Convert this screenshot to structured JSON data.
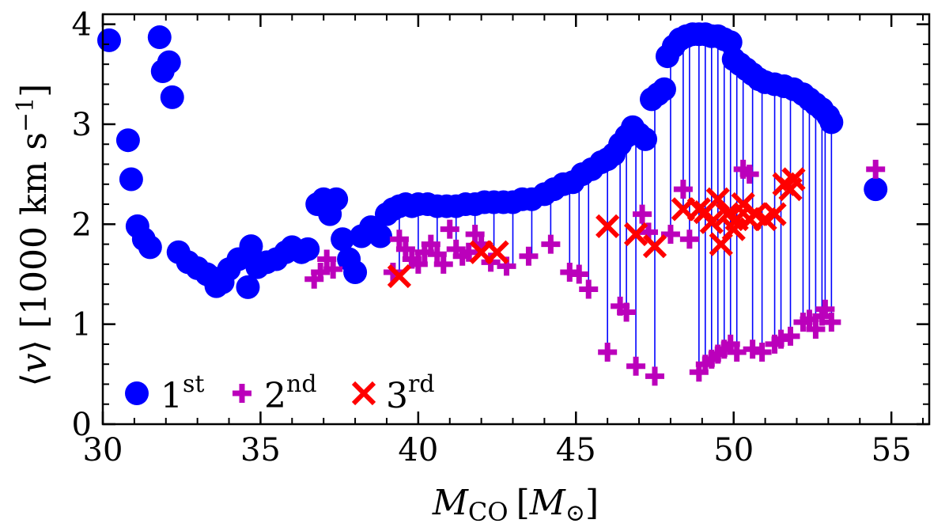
{
  "chart_data": {
    "type": "scatter",
    "title": "",
    "xlabel": "M_CO [M_⊙]",
    "ylabel": "⟨v⟩ [1000 km s^−1]",
    "xlabel_parts": {
      "main": "M",
      "sub": "CO",
      "bracket_open": "[",
      "unit_main": "M",
      "unit_sub": "⊙",
      "bracket_close": "]"
    },
    "ylabel_parts": {
      "angle_open": "⟨",
      "var": "v",
      "angle_close": "⟩",
      "unit": "[1000 km s",
      "exp": "−1",
      "close": "]"
    },
    "xlim": [
      30,
      56.2
    ],
    "ylim": [
      0,
      4.1
    ],
    "xticks": [
      30,
      35,
      40,
      45,
      50,
      55
    ],
    "xtick_labels": [
      "30",
      "35",
      "40",
      "45",
      "50",
      "55"
    ],
    "yticks": [
      0,
      1,
      2,
      3,
      4
    ],
    "ytick_labels": [
      "0",
      "1",
      "2",
      "3",
      "4"
    ],
    "legend_position": "bottom-left",
    "colors": {
      "first": "#0000ff",
      "second": "#bb00bb",
      "third": "#ff0000",
      "stem": "#0000ff",
      "axis": "#000000"
    },
    "series": [
      {
        "name": "1st",
        "label_base": "1",
        "label_sup": "st",
        "marker": "circle",
        "points": [
          [
            30.2,
            3.84
          ],
          [
            30.8,
            2.84
          ],
          [
            30.9,
            2.45
          ],
          [
            31.1,
            1.98
          ],
          [
            31.3,
            1.85
          ],
          [
            31.5,
            1.77
          ],
          [
            31.8,
            3.87
          ],
          [
            31.9,
            3.53
          ],
          [
            32.1,
            3.62
          ],
          [
            32.2,
            3.27
          ],
          [
            32.4,
            1.72
          ],
          [
            32.7,
            1.62
          ],
          [
            33.0,
            1.56
          ],
          [
            33.3,
            1.5
          ],
          [
            33.5,
            1.46
          ],
          [
            33.6,
            1.38
          ],
          [
            33.8,
            1.42
          ],
          [
            34.0,
            1.55
          ],
          [
            34.3,
            1.65
          ],
          [
            34.6,
            1.37
          ],
          [
            34.7,
            1.78
          ],
          [
            34.9,
            1.57
          ],
          [
            35.2,
            1.62
          ],
          [
            35.5,
            1.65
          ],
          [
            35.8,
            1.72
          ],
          [
            36.0,
            1.77
          ],
          [
            36.3,
            1.72
          ],
          [
            36.5,
            1.75
          ],
          [
            36.8,
            2.2
          ],
          [
            37.0,
            2.25
          ],
          [
            37.2,
            2.1
          ],
          [
            37.4,
            2.25
          ],
          [
            37.6,
            1.85
          ],
          [
            37.8,
            1.65
          ],
          [
            38.0,
            1.52
          ],
          [
            38.2,
            1.88
          ],
          [
            38.5,
            1.97
          ],
          [
            38.8,
            1.88
          ],
          [
            39.0,
            2.1
          ],
          [
            39.2,
            2.15
          ],
          [
            39.4,
            2.18
          ],
          [
            39.6,
            2.2
          ],
          [
            39.8,
            2.18
          ],
          [
            40.0,
            2.2
          ],
          [
            40.3,
            2.2
          ],
          [
            40.6,
            2.18
          ],
          [
            40.9,
            2.18
          ],
          [
            41.2,
            2.18
          ],
          [
            41.5,
            2.2
          ],
          [
            41.8,
            2.2
          ],
          [
            42.1,
            2.22
          ],
          [
            42.4,
            2.22
          ],
          [
            42.7,
            2.22
          ],
          [
            43.0,
            2.22
          ],
          [
            43.3,
            2.25
          ],
          [
            43.6,
            2.25
          ],
          [
            44.0,
            2.3
          ],
          [
            44.3,
            2.35
          ],
          [
            44.6,
            2.4
          ],
          [
            44.9,
            2.42
          ],
          [
            45.2,
            2.5
          ],
          [
            45.5,
            2.55
          ],
          [
            45.8,
            2.62
          ],
          [
            46.0,
            2.65
          ],
          [
            46.2,
            2.7
          ],
          [
            46.4,
            2.8
          ],
          [
            46.6,
            2.88
          ],
          [
            46.8,
            2.97
          ],
          [
            47.0,
            2.9
          ],
          [
            47.2,
            2.85
          ],
          [
            47.4,
            3.25
          ],
          [
            47.6,
            3.3
          ],
          [
            47.8,
            3.35
          ],
          [
            47.9,
            3.68
          ],
          [
            48.1,
            3.78
          ],
          [
            48.3,
            3.85
          ],
          [
            48.5,
            3.88
          ],
          [
            48.7,
            3.9
          ],
          [
            48.9,
            3.9
          ],
          [
            49.1,
            3.9
          ],
          [
            49.3,
            3.88
          ],
          [
            49.5,
            3.88
          ],
          [
            49.7,
            3.85
          ],
          [
            49.9,
            3.82
          ],
          [
            50.0,
            3.65
          ],
          [
            50.2,
            3.6
          ],
          [
            50.4,
            3.55
          ],
          [
            50.6,
            3.5
          ],
          [
            50.8,
            3.45
          ],
          [
            51.0,
            3.42
          ],
          [
            51.3,
            3.4
          ],
          [
            51.6,
            3.38
          ],
          [
            51.9,
            3.35
          ],
          [
            52.2,
            3.3
          ],
          [
            52.4,
            3.25
          ],
          [
            52.6,
            3.2
          ],
          [
            52.8,
            3.15
          ],
          [
            53.0,
            3.08
          ],
          [
            53.1,
            3.02
          ],
          [
            54.5,
            2.35
          ]
        ]
      },
      {
        "name": "2nd",
        "label_base": "2",
        "label_sup": "nd",
        "marker": "plus",
        "points": [
          [
            36.7,
            1.45
          ],
          [
            36.9,
            1.52
          ],
          [
            37.1,
            1.65
          ],
          [
            37.3,
            1.55
          ],
          [
            39.2,
            1.52
          ],
          [
            39.4,
            1.85
          ],
          [
            39.6,
            1.75
          ],
          [
            39.8,
            1.65
          ],
          [
            40.0,
            1.6
          ],
          [
            40.2,
            1.72
          ],
          [
            40.4,
            1.8
          ],
          [
            40.6,
            1.7
          ],
          [
            40.8,
            1.6
          ],
          [
            41.0,
            1.95
          ],
          [
            41.2,
            1.75
          ],
          [
            41.4,
            1.68
          ],
          [
            41.6,
            1.72
          ],
          [
            41.8,
            1.9
          ],
          [
            42.0,
            1.8
          ],
          [
            42.3,
            1.62
          ],
          [
            42.8,
            1.58
          ],
          [
            43.5,
            1.68
          ],
          [
            44.2,
            1.8
          ],
          [
            44.8,
            1.52
          ],
          [
            45.1,
            1.5
          ],
          [
            45.4,
            1.35
          ],
          [
            46.0,
            0.72
          ],
          [
            46.4,
            1.18
          ],
          [
            46.6,
            1.12
          ],
          [
            46.9,
            0.58
          ],
          [
            47.1,
            2.1
          ],
          [
            47.3,
            1.92
          ],
          [
            47.5,
            0.48
          ],
          [
            48.0,
            1.9
          ],
          [
            48.4,
            2.35
          ],
          [
            48.6,
            1.85
          ],
          [
            48.9,
            0.52
          ],
          [
            49.1,
            0.6
          ],
          [
            49.3,
            0.65
          ],
          [
            49.5,
            0.7
          ],
          [
            49.7,
            0.75
          ],
          [
            49.9,
            0.8
          ],
          [
            50.1,
            0.72
          ],
          [
            50.3,
            2.55
          ],
          [
            50.5,
            2.5
          ],
          [
            50.6,
            0.75
          ],
          [
            50.9,
            0.72
          ],
          [
            51.3,
            0.8
          ],
          [
            51.5,
            0.85
          ],
          [
            51.8,
            0.88
          ],
          [
            52.2,
            1.02
          ],
          [
            52.4,
            1.05
          ],
          [
            52.6,
            0.95
          ],
          [
            52.8,
            1.08
          ],
          [
            52.9,
            1.15
          ],
          [
            53.1,
            1.02
          ],
          [
            54.5,
            2.55
          ]
        ]
      },
      {
        "name": "3rd",
        "label_base": "3",
        "label_sup": "rd",
        "marker": "x",
        "points": [
          [
            39.4,
            1.48
          ],
          [
            42.0,
            1.72
          ],
          [
            42.5,
            1.72
          ],
          [
            46.0,
            1.98
          ],
          [
            46.9,
            1.9
          ],
          [
            47.5,
            1.78
          ],
          [
            48.4,
            2.15
          ],
          [
            48.9,
            2.15
          ],
          [
            49.1,
            2.12
          ],
          [
            49.3,
            2.02
          ],
          [
            49.5,
            2.25
          ],
          [
            49.6,
            1.8
          ],
          [
            49.8,
            2.1
          ],
          [
            50.0,
            1.95
          ],
          [
            50.1,
            2.05
          ],
          [
            50.3,
            2.2
          ],
          [
            50.5,
            2.05
          ],
          [
            50.7,
            2.1
          ],
          [
            51.0,
            2.05
          ],
          [
            51.3,
            2.1
          ],
          [
            51.6,
            2.4
          ],
          [
            51.8,
            2.35
          ],
          [
            51.9,
            2.45
          ]
        ]
      }
    ],
    "stems": [
      [
        39.4,
        2.18,
        1.48
      ],
      [
        40.0,
        2.2,
        1.6
      ],
      [
        40.6,
        2.18,
        1.7
      ],
      [
        41.2,
        2.18,
        1.75
      ],
      [
        41.8,
        2.2,
        1.9
      ],
      [
        42.4,
        2.22,
        1.7
      ],
      [
        43.0,
        2.22,
        1.6
      ],
      [
        43.6,
        2.25,
        1.68
      ],
      [
        44.2,
        2.3,
        1.8
      ],
      [
        44.8,
        2.4,
        1.52
      ],
      [
        45.1,
        2.45,
        1.5
      ],
      [
        45.4,
        2.55,
        1.35
      ],
      [
        46.0,
        2.65,
        0.72
      ],
      [
        46.4,
        2.8,
        1.18
      ],
      [
        46.6,
        2.88,
        1.12
      ],
      [
        46.9,
        2.97,
        0.58
      ],
      [
        47.1,
        2.9,
        1.92
      ],
      [
        47.5,
        3.28,
        0.48
      ],
      [
        48.0,
        3.72,
        1.9
      ],
      [
        48.4,
        3.85,
        2.15
      ],
      [
        48.6,
        3.88,
        1.85
      ],
      [
        48.9,
        3.9,
        0.52
      ],
      [
        49.1,
        3.9,
        0.6
      ],
      [
        49.3,
        3.88,
        0.65
      ],
      [
        49.5,
        3.88,
        0.7
      ],
      [
        49.7,
        3.85,
        0.75
      ],
      [
        49.9,
        3.82,
        0.8
      ],
      [
        50.1,
        3.62,
        0.72
      ],
      [
        50.3,
        3.58,
        2.2
      ],
      [
        50.6,
        3.5,
        0.75
      ],
      [
        50.9,
        3.44,
        0.72
      ],
      [
        51.3,
        3.4,
        0.8
      ],
      [
        51.5,
        3.39,
        0.85
      ],
      [
        51.8,
        3.36,
        0.88
      ],
      [
        52.2,
        3.3,
        1.02
      ],
      [
        52.4,
        3.25,
        1.05
      ],
      [
        52.6,
        3.2,
        0.95
      ],
      [
        52.8,
        3.15,
        1.08
      ],
      [
        52.9,
        3.12,
        1.15
      ],
      [
        53.1,
        3.02,
        1.02
      ]
    ]
  }
}
